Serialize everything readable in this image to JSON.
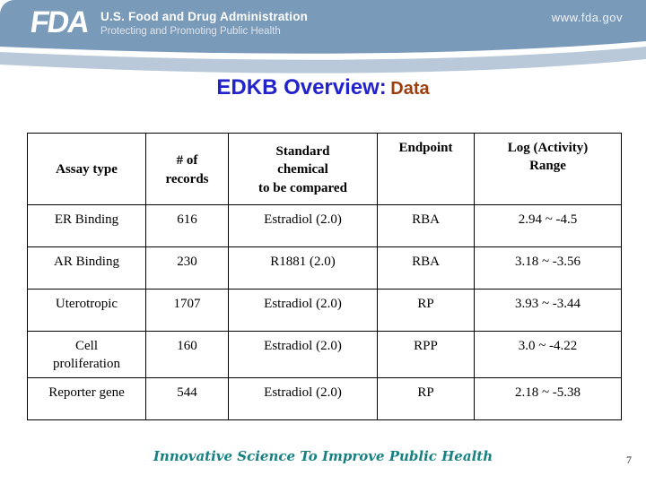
{
  "header": {
    "logo": "FDA",
    "org_name": "U.S. Food and Drug Administration",
    "tagline": "Protecting and Promoting Public Health",
    "website": "www.fda.gov",
    "band_color": "#7a9aba",
    "wave_color": "#b9c9d9"
  },
  "title": {
    "main": "EDKB Overview:",
    "highlight": "Data",
    "main_color": "#2323cb",
    "highlight_color": "#9c3e10"
  },
  "table": {
    "columns": [
      "Assay type",
      "# of\nrecords",
      "Standard\nchemical\nto be compared",
      "Endpoint",
      "Log (Activity)\nRange"
    ],
    "column_valign": [
      "middle",
      "middle",
      "middle",
      "top",
      "top"
    ],
    "rows": [
      [
        "ER Binding",
        "616",
        "Estradiol (2.0)",
        "RBA",
        "2.94 ~ -4.5"
      ],
      [
        "AR Binding",
        "230",
        "R1881 (2.0)",
        "RBA",
        "3.18 ~ -3.56"
      ],
      [
        "Uterotropic",
        "1707",
        "Estradiol (2.0)",
        "RP",
        "3.93 ~ -3.44"
      ],
      [
        "Cell\nproliferation",
        "160",
        "Estradiol (2.0)",
        "RPP",
        "3.0 ~ -4.22"
      ],
      [
        "Reporter gene",
        "544",
        "Estradiol (2.0)",
        "RP",
        "2.18 ~ -5.38"
      ]
    ]
  },
  "footer": {
    "motto": "Innovative Science To Improve Public Health",
    "motto_color": "#178181",
    "page_number": "7"
  }
}
